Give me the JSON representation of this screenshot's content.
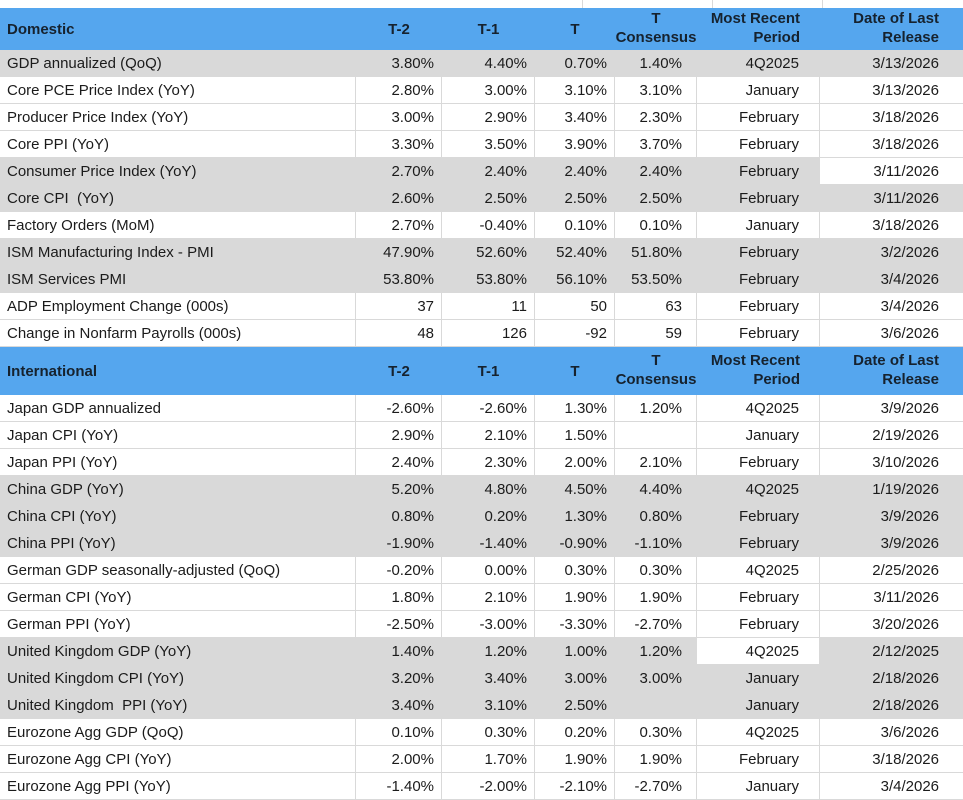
{
  "table": {
    "column_headers": {
      "t2": "T-2",
      "t1": "T-1",
      "t": "T",
      "consensus_line1": "T",
      "consensus_line2": "Consensus",
      "period_line1": "Most Recent",
      "period_line2": "Period",
      "date_line1": "Date of Last",
      "date_line2": "Release"
    },
    "colors": {
      "header_bg": "#55a6ee",
      "header_text": "#16222e",
      "alt_row_bg": "#d9d9d9",
      "row_bg": "#ffffff",
      "gridline": "#d9d9d9"
    },
    "sections": [
      {
        "title": "Domestic",
        "rows": [
          {
            "label": "GDP annualized (QoQ)",
            "t2": "3.80%",
            "t1": "4.40%",
            "t": "0.70%",
            "consensus": "1.40%",
            "period": "4Q2025",
            "date": "3/13/2026",
            "shade": "gray"
          },
          {
            "label": "Core PCE Price Index (YoY)",
            "t2": "2.80%",
            "t1": "3.00%",
            "t": "3.10%",
            "consensus": "3.10%",
            "period": "January",
            "date": "3/13/2026",
            "shade": "white"
          },
          {
            "label": "Producer Price Index (YoY)",
            "t2": "3.00%",
            "t1": "2.90%",
            "t": "3.40%",
            "consensus": "2.30%",
            "period": "February",
            "date": "3/18/2026",
            "shade": "white"
          },
          {
            "label": "Core PPI (YoY)",
            "t2": "3.30%",
            "t1": "3.50%",
            "t": "3.90%",
            "consensus": "3.70%",
            "period": "February",
            "date": "3/18/2026",
            "shade": "white"
          },
          {
            "label": "Consumer Price Index (YoY)",
            "t2": "2.70%",
            "t1": "2.40%",
            "t": "2.40%",
            "consensus": "2.40%",
            "period": "February",
            "date": "3/11/2026",
            "shade": "gray",
            "highlight_white": "date"
          },
          {
            "label": "Core CPI  (YoY)",
            "t2": "2.60%",
            "t1": "2.50%",
            "t": "2.50%",
            "consensus": "2.50%",
            "period": "February",
            "date": "3/11/2026",
            "shade": "gray"
          },
          {
            "label": "Factory Orders (MoM)",
            "t2": "2.70%",
            "t1": "-0.40%",
            "t": "0.10%",
            "consensus": "0.10%",
            "period": "January",
            "date": "3/18/2026",
            "shade": "white"
          },
          {
            "label": "ISM Manufacturing Index - PMI",
            "t2": "47.90%",
            "t1": "52.60%",
            "t": "52.40%",
            "consensus": "51.80%",
            "period": "February",
            "date": "3/2/2026",
            "shade": "gray"
          },
          {
            "label": "ISM Services PMI",
            "t2": "53.80%",
            "t1": "53.80%",
            "t": "56.10%",
            "consensus": "53.50%",
            "period": "February",
            "date": "3/4/2026",
            "shade": "gray"
          },
          {
            "label": "ADP Employment Change (000s)",
            "t2": "37",
            "t1": "11",
            "t": "50",
            "consensus": "63",
            "period": "February",
            "date": "3/4/2026",
            "shade": "white"
          },
          {
            "label": "Change in Nonfarm Payrolls (000s)",
            "t2": "48",
            "t1": "126",
            "t": "-92",
            "consensus": "59",
            "period": "February",
            "date": "3/6/2026",
            "shade": "white"
          }
        ]
      },
      {
        "title": "International",
        "rows": [
          {
            "label": "Japan GDP annualized",
            "t2": "-2.60%",
            "t1": "-2.60%",
            "t": "1.30%",
            "consensus": "1.20%",
            "period": "4Q2025",
            "date": "3/9/2026",
            "shade": "white"
          },
          {
            "label": "Japan CPI (YoY)",
            "t2": "2.90%",
            "t1": "2.10%",
            "t": "1.50%",
            "consensus": "",
            "period": "January",
            "date": "2/19/2026",
            "shade": "white"
          },
          {
            "label": "Japan PPI (YoY)",
            "t2": "2.40%",
            "t1": "2.30%",
            "t": "2.00%",
            "consensus": "2.10%",
            "period": "February",
            "date": "3/10/2026",
            "shade": "white"
          },
          {
            "label": "China GDP (YoY)",
            "t2": "5.20%",
            "t1": "4.80%",
            "t": "4.50%",
            "consensus": "4.40%",
            "period": "4Q2025",
            "date": "1/19/2026",
            "shade": "gray"
          },
          {
            "label": "China CPI (YoY)",
            "t2": "0.80%",
            "t1": "0.20%",
            "t": "1.30%",
            "consensus": "0.80%",
            "period": "February",
            "date": "3/9/2026",
            "shade": "gray"
          },
          {
            "label": "China PPI (YoY)",
            "t2": "-1.90%",
            "t1": "-1.40%",
            "t": "-0.90%",
            "consensus": "-1.10%",
            "period": "February",
            "date": "3/9/2026",
            "shade": "gray"
          },
          {
            "label": "German GDP seasonally-adjusted (QoQ)",
            "t2": "-0.20%",
            "t1": "0.00%",
            "t": "0.30%",
            "consensus": "0.30%",
            "period": "4Q2025",
            "date": "2/25/2026",
            "shade": "white"
          },
          {
            "label": "German CPI (YoY)",
            "t2": "1.80%",
            "t1": "2.10%",
            "t": "1.90%",
            "consensus": "1.90%",
            "period": "February",
            "date": "3/11/2026",
            "shade": "white"
          },
          {
            "label": "German PPI (YoY)",
            "t2": "-2.50%",
            "t1": "-3.00%",
            "t": "-3.30%",
            "consensus": "-2.70%",
            "period": "February",
            "date": "3/20/2026",
            "shade": "white"
          },
          {
            "label": "United Kingdom GDP (YoY)",
            "t2": "1.40%",
            "t1": "1.20%",
            "t": "1.00%",
            "consensus": "1.20%",
            "period": "4Q2025",
            "date": "2/12/2025",
            "shade": "gray",
            "highlight_white": "period"
          },
          {
            "label": "United Kingdom CPI (YoY)",
            "t2": "3.20%",
            "t1": "3.40%",
            "t": "3.00%",
            "consensus": "3.00%",
            "period": "January",
            "date": "2/18/2026",
            "shade": "gray"
          },
          {
            "label": "United Kingdom  PPI (YoY)",
            "t2": "3.40%",
            "t1": "3.10%",
            "t": "2.50%",
            "consensus": "",
            "period": "January",
            "date": "2/18/2026",
            "shade": "gray"
          },
          {
            "label": "Eurozone Agg GDP (QoQ)",
            "t2": "0.10%",
            "t1": "0.30%",
            "t": "0.20%",
            "consensus": "0.30%",
            "period": "4Q2025",
            "date": "3/6/2026",
            "shade": "white"
          },
          {
            "label": "Eurozone Agg CPI (YoY)",
            "t2": "2.00%",
            "t1": "1.70%",
            "t": "1.90%",
            "consensus": "1.90%",
            "period": "February",
            "date": "3/18/2026",
            "shade": "white"
          },
          {
            "label": "Eurozone Agg PPI (YoY)",
            "t2": "-1.40%",
            "t1": "-2.00%",
            "t": "-2.10%",
            "consensus": "-2.70%",
            "period": "January",
            "date": "3/4/2026",
            "shade": "white"
          }
        ]
      }
    ]
  }
}
